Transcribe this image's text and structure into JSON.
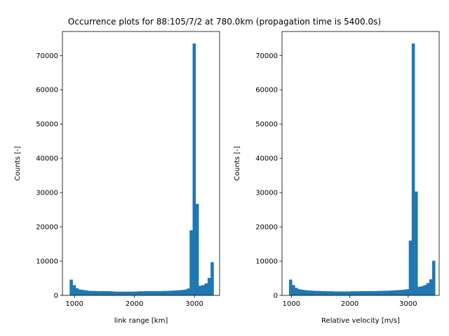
{
  "figure": {
    "title": "Occurrence plots for 88:105/7/2 at 780.0km (propagation time is 5400.0s)"
  },
  "chart_data": [
    {
      "type": "bar",
      "histogram": true,
      "xlabel": "link range [km]",
      "ylabel": "Counts [-]",
      "xlim": [
        800,
        3420
      ],
      "ylim": [
        0,
        77000
      ],
      "xticks": [
        1000,
        2000,
        3000
      ],
      "yticks": [
        0,
        10000,
        20000,
        30000,
        40000,
        50000,
        60000,
        70000
      ],
      "grid": false,
      "color": "#1f77b4",
      "bin_edges": [
        920,
        970,
        1020,
        1070,
        1120,
        1170,
        1220,
        1270,
        1320,
        1370,
        1420,
        1470,
        1520,
        1570,
        1620,
        1670,
        1720,
        1770,
        1820,
        1870,
        1920,
        1970,
        2020,
        2070,
        2120,
        2170,
        2220,
        2270,
        2320,
        2370,
        2420,
        2470,
        2520,
        2570,
        2620,
        2670,
        2720,
        2770,
        2820,
        2870,
        2920,
        2970,
        3020,
        3070,
        3120,
        3170,
        3220,
        3270,
        3320
      ],
      "values": [
        4600,
        3000,
        2100,
        1700,
        1600,
        1450,
        1350,
        1300,
        1300,
        1250,
        1250,
        1250,
        1250,
        1200,
        1150,
        1100,
        1100,
        1100,
        1100,
        1100,
        1100,
        1100,
        1150,
        1200,
        1200,
        1250,
        1250,
        1250,
        1250,
        1250,
        1250,
        1300,
        1300,
        1350,
        1400,
        1450,
        1500,
        1600,
        1700,
        2000,
        19000,
        73500,
        26700,
        2800,
        3000,
        3500,
        5100,
        9700
      ]
    },
    {
      "type": "bar",
      "histogram": true,
      "xlabel": "Relative velocity [m/s]",
      "ylabel": "Counts [-]",
      "xlim": [
        840,
        3530
      ],
      "ylim": [
        0,
        77000
      ],
      "xticks": [
        1000,
        2000,
        3000
      ],
      "yticks": [
        0,
        10000,
        20000,
        30000,
        40000,
        50000,
        60000,
        70000
      ],
      "grid": false,
      "color": "#1f77b4",
      "bin_edges": [
        960,
        1010,
        1060,
        1110,
        1160,
        1210,
        1260,
        1310,
        1360,
        1410,
        1460,
        1510,
        1560,
        1610,
        1660,
        1710,
        1760,
        1810,
        1860,
        1910,
        1960,
        2010,
        2060,
        2110,
        2160,
        2210,
        2260,
        2310,
        2360,
        2410,
        2460,
        2510,
        2560,
        2610,
        2660,
        2710,
        2760,
        2810,
        2860,
        2910,
        2960,
        3010,
        3060,
        3110,
        3160,
        3210,
        3260,
        3310,
        3360,
        3410,
        3460
      ],
      "values": [
        4600,
        3000,
        2200,
        1800,
        1650,
        1550,
        1450,
        1400,
        1350,
        1300,
        1300,
        1250,
        1250,
        1200,
        1200,
        1150,
        1150,
        1150,
        1150,
        1150,
        1150,
        1200,
        1200,
        1200,
        1250,
        1250,
        1250,
        1250,
        1250,
        1250,
        1300,
        1300,
        1350,
        1350,
        1400,
        1450,
        1500,
        1550,
        1600,
        1700,
        1800,
        16000,
        73500,
        30300,
        2500,
        2700,
        3000,
        3600,
        4700,
        10100
      ]
    }
  ]
}
